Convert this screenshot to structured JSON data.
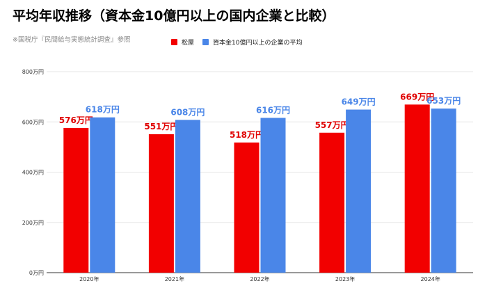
{
  "title": "平均年収推移（資本金10億円以上の国内企業と比較）",
  "source_note": "※国税庁『民間給与実態統計調査』参照",
  "colors": {
    "series1": "#f20000",
    "series2": "#4a86e8",
    "label1": "#e00000",
    "label2": "#4a86e8",
    "grid": "#e6e6e6",
    "axis": "#333333"
  },
  "chart_data": {
    "type": "bar",
    "categories": [
      "2020年",
      "2021年",
      "2022年",
      "2023年",
      "2024年"
    ],
    "series": [
      {
        "name": "松屋",
        "values": [
          576,
          551,
          518,
          557,
          669
        ],
        "labels": [
          "576万円",
          "551万円",
          "518万円",
          "557万円",
          "669万円"
        ]
      },
      {
        "name": "資本金10億円以上の企業の平均",
        "values": [
          618,
          608,
          616,
          649,
          653
        ],
        "labels": [
          "618万円",
          "608万円",
          "616万円",
          "649万円",
          "653万円"
        ]
      }
    ],
    "ylim": [
      0,
      800
    ],
    "yticks": [
      0,
      200,
      400,
      600,
      800
    ],
    "ytick_labels": [
      "0万円",
      "200万円",
      "400万円",
      "600万円",
      "800万円"
    ],
    "grid": true,
    "legend_position": "top"
  }
}
